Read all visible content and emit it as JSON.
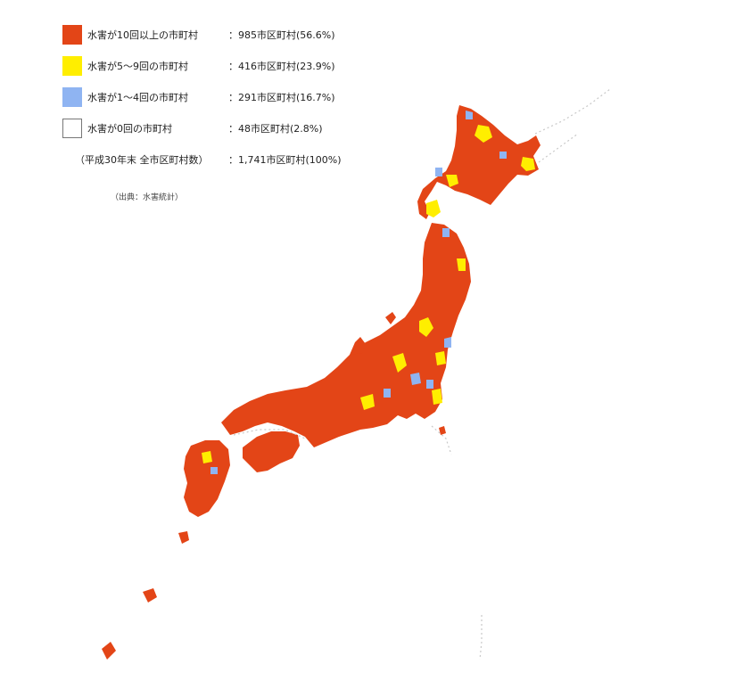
{
  "legend": {
    "items": [
      {
        "label": "水害が10回以上の市町村",
        "value": "：985市区町村(56.6%)",
        "color": "#E34517"
      },
      {
        "label": "水害が5～9回の市町村",
        "value": "：416市区町村(23.9%)",
        "color": "#FFEE00"
      },
      {
        "label": "水害が1～4回の市町村",
        "value": "：291市区町村(16.7%)",
        "color": "#8FB4F2"
      },
      {
        "label": "水害が0回の市町村",
        "value": "：48市区町村(2.8%)",
        "color": "#FFFFFF"
      }
    ],
    "total_label": "（平成30年末 全市区町村数）",
    "total_value": "：1,741市区町村(100%)",
    "source": "（出典：水害統計）"
  },
  "map_colors": {
    "ten_plus": "#E34517",
    "five_to_nine": "#FFEE00",
    "one_to_four": "#8FB4F2",
    "zero": "#FFFFFF",
    "outline": "#C9C9C9"
  }
}
